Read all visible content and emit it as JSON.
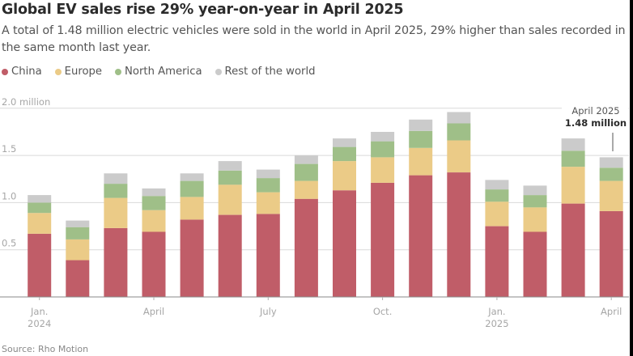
{
  "header": {
    "title": "Global EV sales rise 29% year-on-year in April 2025",
    "subtitle": "A total of 1.48 million electric vehicles were sold in the world in April 2025, 29% higher than sales recorded in the same month last year."
  },
  "legend": [
    {
      "label": "China",
      "color": "#c05d68"
    },
    {
      "label": "Europe",
      "color": "#ebcb87"
    },
    {
      "label": "North America",
      "color": "#9fbf88"
    },
    {
      "label": "Rest of the world",
      "color": "#cbcbcb"
    }
  ],
  "annotation": {
    "line1": "April 2025",
    "line2": "1.48 million"
  },
  "source": "Source: Rho Motion",
  "chart_data": {
    "type": "bar",
    "stacked": true,
    "title": "Global EV sales rise 29% year-on-year in April 2025",
    "xlabel": "",
    "ylabel": "",
    "unit": "million",
    "ylim": [
      0,
      2.0
    ],
    "yticks": [
      {
        "value": 0.5,
        "label": "0.5"
      },
      {
        "value": 1.0,
        "label": "1.0"
      },
      {
        "value": 1.5,
        "label": "1.5"
      },
      {
        "value": 2.0,
        "label": "2.0 million"
      }
    ],
    "grid": true,
    "legend_position": "top-left",
    "categories": [
      "Jan 2024",
      "Feb 2024",
      "Mar 2024",
      "Apr 2024",
      "May 2024",
      "Jun 2024",
      "Jul 2024",
      "Aug 2024",
      "Sep 2024",
      "Oct 2024",
      "Nov 2024",
      "Dec 2024",
      "Jan 2025",
      "Feb 2025",
      "Mar 2025",
      "Apr 2025"
    ],
    "xticks": [
      {
        "index": 0,
        "line1": "Jan.",
        "line2": "2024"
      },
      {
        "index": 3,
        "line1": "April",
        "line2": ""
      },
      {
        "index": 6,
        "line1": "July",
        "line2": ""
      },
      {
        "index": 9,
        "line1": "Oct.",
        "line2": ""
      },
      {
        "index": 12,
        "line1": "Jan.",
        "line2": "2025"
      },
      {
        "index": 15,
        "line1": "April",
        "line2": ""
      }
    ],
    "series": [
      {
        "name": "China",
        "color": "#c05d68",
        "values": [
          0.67,
          0.39,
          0.73,
          0.69,
          0.82,
          0.87,
          0.88,
          1.04,
          1.13,
          1.21,
          1.29,
          1.32,
          0.75,
          0.69,
          0.99,
          0.91
        ]
      },
      {
        "name": "Europe",
        "color": "#ebcb87",
        "values": [
          0.22,
          0.22,
          0.32,
          0.23,
          0.24,
          0.32,
          0.23,
          0.19,
          0.31,
          0.27,
          0.29,
          0.34,
          0.26,
          0.26,
          0.39,
          0.32
        ]
      },
      {
        "name": "North America",
        "color": "#9fbf88",
        "values": [
          0.11,
          0.13,
          0.15,
          0.15,
          0.17,
          0.15,
          0.15,
          0.18,
          0.15,
          0.17,
          0.18,
          0.18,
          0.13,
          0.13,
          0.17,
          0.14
        ]
      },
      {
        "name": "Rest of the world",
        "color": "#cbcbcb",
        "values": [
          0.08,
          0.07,
          0.11,
          0.08,
          0.08,
          0.1,
          0.09,
          0.09,
          0.09,
          0.1,
          0.12,
          0.12,
          0.1,
          0.1,
          0.13,
          0.11
        ]
      }
    ],
    "annotations": [
      {
        "index": 15,
        "text": "April 2025",
        "value_text": "1.48 million",
        "value": 1.48
      }
    ]
  }
}
